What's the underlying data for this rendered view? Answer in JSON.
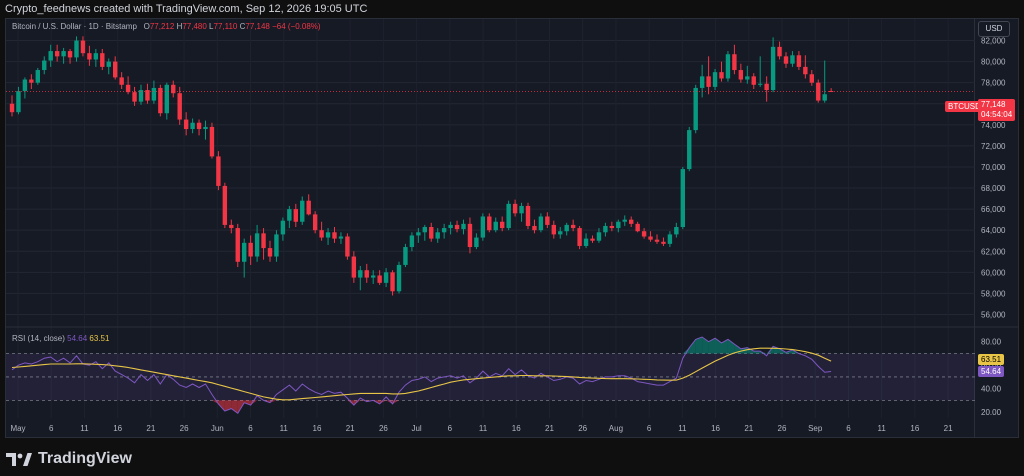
{
  "header": {
    "caption": "Crypto_feednews created with TradingView.com, Sep 12, 2026 19:05 UTC"
  },
  "legend": {
    "symbol": "Bitcoin / U.S. Dollar · 1D · Bitstamp",
    "o_label": "O",
    "o": "77,212",
    "h_label": "H",
    "h": "77,480",
    "l_label": "L",
    "l": "77,110",
    "c_label": "C",
    "c": "77,148",
    "change": "−64 (−0.08%)"
  },
  "currency_button": "USD",
  "price_badges": {
    "ticker": "BTCUSD",
    "price": "77,148",
    "countdown": "04:54:04"
  },
  "rsi_legend": {
    "label": "RSI (14, close)",
    "rsi": "54.64",
    "ma": "63.51"
  },
  "footer": {
    "brand": "TradingView"
  },
  "colors": {
    "up": "#089981",
    "down": "#f23645",
    "rsi": "#7e57c2",
    "rsi_ma": "#e8c547",
    "background": "#161a25"
  },
  "chart_data": [
    {
      "type": "candlestick",
      "title": "Bitcoin / U.S. Dollar · 1D · Bitstamp",
      "ylim": [
        55000,
        83000
      ],
      "y_ticks": [
        56000,
        58000,
        60000,
        62000,
        64000,
        66000,
        68000,
        70000,
        72000,
        74000,
        76000,
        78000,
        80000,
        82000
      ],
      "x_ticks": [
        "May",
        "6",
        "11",
        "16",
        "21",
        "26",
        "Jun",
        "6",
        "11",
        "16",
        "21",
        "26",
        "Jul",
        "6",
        "11",
        "16",
        "21",
        "26",
        "Aug",
        "6",
        "11",
        "16",
        "21",
        "26",
        "Sep",
        "6",
        "11",
        "16",
        "21"
      ],
      "ohlc": [
        [
          76000,
          76800,
          74800,
          75200
        ],
        [
          75200,
          77600,
          75000,
          77200
        ],
        [
          77200,
          78500,
          76500,
          78300
        ],
        [
          78300,
          78800,
          77400,
          78000
        ],
        [
          78000,
          79400,
          77800,
          79200
        ],
        [
          79200,
          80500,
          78800,
          80100
        ],
        [
          80100,
          81600,
          79500,
          81000
        ],
        [
          81000,
          81600,
          80000,
          80500
        ],
        [
          80500,
          81300,
          79800,
          81000
        ],
        [
          81000,
          81200,
          79800,
          80400
        ],
        [
          80400,
          82400,
          80000,
          82000
        ],
        [
          82000,
          82400,
          80500,
          80800
        ],
        [
          80800,
          81500,
          79600,
          80200
        ],
        [
          80200,
          81200,
          79500,
          80800
        ],
        [
          80800,
          81200,
          79200,
          79500
        ],
        [
          79500,
          80300,
          78800,
          80000
        ],
        [
          80000,
          80500,
          78300,
          78500
        ],
        [
          78500,
          79000,
          77400,
          77800
        ],
        [
          77800,
          78600,
          76900,
          77100
        ],
        [
          77100,
          77600,
          75800,
          76200
        ],
        [
          76200,
          77800,
          75900,
          77300
        ],
        [
          77300,
          77900,
          76000,
          76300
        ],
        [
          76300,
          78200,
          76000,
          77500
        ],
        [
          77500,
          77800,
          74800,
          75100
        ],
        [
          75100,
          78000,
          74500,
          77800
        ],
        [
          77800,
          78200,
          76600,
          77000
        ],
        [
          77000,
          77600,
          74000,
          74500
        ],
        [
          74500,
          75200,
          73000,
          73600
        ],
        [
          73600,
          74600,
          73200,
          74200
        ],
        [
          74200,
          74500,
          73000,
          73600
        ],
        [
          73600,
          74400,
          72600,
          73800
        ],
        [
          73800,
          74200,
          70800,
          71000
        ],
        [
          71000,
          71500,
          67800,
          68200
        ],
        [
          68200,
          68500,
          64200,
          64500
        ],
        [
          64500,
          65000,
          63700,
          64200
        ],
        [
          64200,
          64600,
          60500,
          61000
        ],
        [
          61000,
          63200,
          59500,
          62800
        ],
        [
          62800,
          63500,
          60700,
          61500
        ],
        [
          61500,
          64500,
          61000,
          63700
        ],
        [
          63700,
          64200,
          61200,
          62300
        ],
        [
          62300,
          63000,
          61000,
          61500
        ],
        [
          61500,
          64000,
          61000,
          63600
        ],
        [
          63600,
          65200,
          63000,
          64900
        ],
        [
          64900,
          66300,
          64200,
          66000
        ],
        [
          66000,
          66500,
          64300,
          64800
        ],
        [
          64800,
          67200,
          64500,
          66800
        ],
        [
          66800,
          67400,
          65400,
          65500
        ],
        [
          65500,
          65800,
          63700,
          64000
        ],
        [
          64000,
          64800,
          63000,
          63300
        ],
        [
          63300,
          64200,
          62600,
          63800
        ],
        [
          63800,
          64300,
          62800,
          63200
        ],
        [
          63200,
          63800,
          62700,
          63400
        ],
        [
          63400,
          63700,
          61200,
          61500
        ],
        [
          61500,
          62000,
          59000,
          59500
        ],
        [
          59500,
          60600,
          58300,
          60200
        ],
        [
          60200,
          60800,
          59000,
          59500
        ],
        [
          59500,
          60200,
          58900,
          59700
        ],
        [
          59700,
          60200,
          58800,
          59000
        ],
        [
          59000,
          60400,
          58600,
          60000
        ],
        [
          60000,
          60200,
          57800,
          58200
        ],
        [
          58200,
          61000,
          58000,
          60700
        ],
        [
          60700,
          62700,
          60500,
          62400
        ],
        [
          62400,
          63800,
          62000,
          63500
        ],
        [
          63500,
          64200,
          62800,
          63800
        ],
        [
          63800,
          64500,
          63000,
          64300
        ],
        [
          64300,
          64700,
          62900,
          63200
        ],
        [
          63200,
          64200,
          62800,
          63800
        ],
        [
          63800,
          64600,
          63200,
          64200
        ],
        [
          64200,
          64800,
          63600,
          64500
        ],
        [
          64500,
          64900,
          63800,
          64100
        ],
        [
          64100,
          65000,
          63600,
          64600
        ],
        [
          64600,
          65200,
          61800,
          62400
        ],
        [
          62400,
          63700,
          62200,
          63300
        ],
        [
          63300,
          65600,
          63000,
          65300
        ],
        [
          65300,
          65600,
          63800,
          64000
        ],
        [
          64000,
          65200,
          63800,
          64800
        ],
        [
          64800,
          65300,
          63900,
          64200
        ],
        [
          64200,
          66800,
          64000,
          66500
        ],
        [
          66500,
          66900,
          65300,
          65600
        ],
        [
          65600,
          66600,
          64800,
          66300
        ],
        [
          66300,
          66600,
          64100,
          64400
        ],
        [
          64400,
          65000,
          63700,
          64000
        ],
        [
          64000,
          65600,
          63800,
          65300
        ],
        [
          65300,
          65700,
          64200,
          64500
        ],
        [
          64500,
          64900,
          63200,
          63600
        ],
        [
          63600,
          64300,
          63200,
          63900
        ],
        [
          63900,
          64700,
          63500,
          64500
        ],
        [
          64500,
          65000,
          63900,
          64200
        ],
        [
          64200,
          64400,
          62200,
          62500
        ],
        [
          62500,
          63700,
          62300,
          63200
        ],
        [
          63200,
          63500,
          62800,
          63000
        ],
        [
          63000,
          64200,
          62800,
          63800
        ],
        [
          63800,
          64700,
          63400,
          64400
        ],
        [
          64400,
          64800,
          63900,
          64200
        ],
        [
          64200,
          65000,
          63800,
          64800
        ],
        [
          64800,
          65400,
          64400,
          65000
        ],
        [
          65000,
          65300,
          64300,
          64600
        ],
        [
          64600,
          64800,
          63800,
          63900
        ],
        [
          63900,
          64200,
          63200,
          63400
        ],
        [
          63400,
          63900,
          62900,
          63100
        ],
        [
          63100,
          63600,
          62700,
          62900
        ],
        [
          62900,
          63300,
          62500,
          62700
        ],
        [
          62700,
          63900,
          62400,
          63600
        ],
        [
          63600,
          64700,
          63300,
          64300
        ],
        [
          64300,
          70000,
          64100,
          69800
        ],
        [
          69800,
          73800,
          69600,
          73500
        ],
        [
          73500,
          77800,
          73200,
          77500
        ],
        [
          77500,
          79700,
          76600,
          78600
        ],
        [
          78600,
          80500,
          76900,
          77600
        ],
        [
          77600,
          79300,
          77300,
          79000
        ],
        [
          79000,
          80000,
          78100,
          78400
        ],
        [
          78400,
          81000,
          78100,
          80700
        ],
        [
          80700,
          81600,
          78800,
          79200
        ],
        [
          79200,
          79800,
          78000,
          78300
        ],
        [
          78300,
          79600,
          77900,
          78600
        ],
        [
          78600,
          78900,
          77400,
          77800
        ],
        [
          77800,
          80500,
          77600,
          77900
        ],
        [
          77900,
          78600,
          76200,
          77300
        ],
        [
          77300,
          82300,
          77100,
          81400
        ],
        [
          81400,
          81900,
          80200,
          80500
        ],
        [
          80500,
          80900,
          79400,
          79800
        ],
        [
          79800,
          81000,
          79500,
          80600
        ],
        [
          80600,
          81000,
          79200,
          79500
        ],
        [
          79500,
          80600,
          78400,
          78800
        ],
        [
          78800,
          79200,
          77700,
          78000
        ],
        [
          78000,
          78300,
          76100,
          76300
        ],
        [
          76300,
          80100,
          76100,
          76900
        ],
        [
          77212,
          77480,
          77110,
          77148
        ]
      ]
    },
    {
      "type": "line",
      "title": "RSI (14, close)",
      "ylim": [
        15,
        90
      ],
      "y_ticks": [
        20,
        40,
        60,
        80
      ],
      "bands": {
        "upper": 70,
        "middle": 50,
        "lower": 30
      },
      "series": [
        {
          "name": "RSI",
          "color": "#7e57c2",
          "values": [
            56,
            60,
            62,
            61,
            63,
            66,
            67,
            63,
            66,
            62,
            68,
            61,
            60,
            63,
            57,
            62,
            55,
            52,
            49,
            45,
            52,
            47,
            52,
            44,
            52,
            48,
            43,
            41,
            44,
            41,
            44,
            35,
            27,
            21,
            23,
            19,
            28,
            26,
            34,
            30,
            28,
            35,
            39,
            43,
            38,
            44,
            40,
            37,
            35,
            38,
            36,
            37,
            32,
            26,
            32,
            29,
            30,
            27,
            33,
            27,
            37,
            43,
            47,
            48,
            50,
            46,
            49,
            50,
            51,
            49,
            51,
            45,
            49,
            55,
            50,
            53,
            51,
            57,
            52,
            56,
            51,
            49,
            53,
            50,
            47,
            48,
            50,
            49,
            44,
            47,
            46,
            48,
            50,
            50,
            51,
            51,
            49,
            46,
            45,
            44,
            43,
            43,
            46,
            49,
            66,
            75,
            82,
            84,
            80,
            83,
            79,
            82,
            78,
            74,
            75,
            72,
            72,
            68,
            76,
            74,
            71,
            73,
            70,
            68,
            65,
            59,
            54,
            54.64
          ]
        },
        {
          "name": "RSI-based MA",
          "color": "#e8c547",
          "values": [
            58,
            58.5,
            59,
            59.5,
            60,
            60.5,
            61,
            61,
            61,
            61,
            61.2,
            61.2,
            61,
            60.8,
            60.5,
            60.2,
            59.5,
            58.8,
            58,
            57,
            56,
            55,
            54,
            53,
            52,
            51,
            50,
            49,
            48,
            47,
            46,
            45,
            43.5,
            42,
            40.5,
            39,
            37.5,
            36,
            34.5,
            33,
            32,
            31,
            30.5,
            30.5,
            31,
            31.5,
            32,
            32.5,
            33,
            33.5,
            34,
            34.5,
            35,
            35.5,
            36,
            36,
            36,
            36,
            36,
            35.5,
            35.5,
            36,
            37,
            38,
            39.5,
            41,
            42.5,
            44,
            45.5,
            46.5,
            47.5,
            48,
            48.5,
            49,
            49.5,
            50,
            50.5,
            51,
            51,
            51.2,
            51.2,
            51,
            51,
            51,
            50.8,
            50.5,
            50.3,
            50,
            49.6,
            49.3,
            49,
            48.8,
            48.6,
            48.5,
            48.5,
            48.5,
            48.4,
            48.2,
            48,
            47.8,
            47.5,
            47.3,
            47.2,
            47.3,
            49,
            51.5,
            54.5,
            57.5,
            60.5,
            63.5,
            66,
            68.5,
            70.5,
            72,
            73.2,
            74,
            74.5,
            74.5,
            74.4,
            74.2,
            73.8,
            73.3,
            72.5,
            71.5,
            70.2,
            68.5,
            66,
            63.51
          ]
        }
      ]
    }
  ]
}
